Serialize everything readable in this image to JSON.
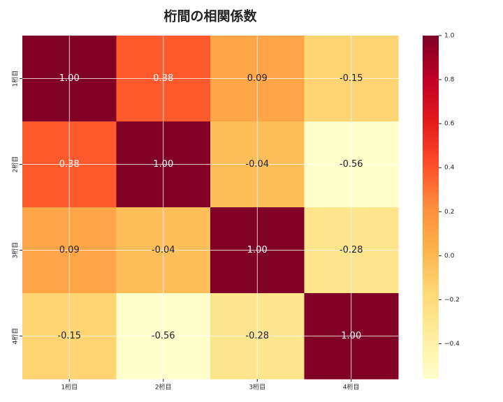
{
  "chart_data": {
    "type": "heatmap",
    "title": "桁間の相関係数",
    "x_categories": [
      "1桁目",
      "2桁目",
      "3桁目",
      "4桁目"
    ],
    "y_categories": [
      "1桁目",
      "2桁目",
      "3桁目",
      "4桁目"
    ],
    "values": [
      [
        1,
        0.38,
        0.09,
        -0.15
      ],
      [
        0.38,
        1,
        -0.04,
        -0.56
      ],
      [
        0.09,
        -0.04,
        1,
        -0.28
      ],
      [
        -0.15,
        -0.56,
        -0.28,
        1
      ]
    ],
    "value_labels": [
      [
        "1.00",
        "0.38",
        "0.09",
        "-0.15"
      ],
      [
        "0.38",
        "1.00",
        "-0.04",
        "-0.56"
      ],
      [
        "0.09",
        "-0.04",
        "1.00",
        "-0.28"
      ],
      [
        "-0.15",
        "-0.56",
        "-0.28",
        "1.00"
      ]
    ],
    "colormap": [
      "#ffffcc",
      "#ffeda0",
      "#fed976",
      "#feb24c",
      "#fd8d3c",
      "#fc4e2a",
      "#e31a1c",
      "#bd0026",
      "#800026"
    ],
    "colorbar_lim": [
      -0.56,
      1
    ],
    "colorbar_ticks": [
      {
        "value": -0.4,
        "label": "−0.4"
      },
      {
        "value": -0.2,
        "label": "−0.2"
      },
      {
        "value": 0,
        "label": "0.0"
      },
      {
        "value": 0.2,
        "label": "0.2"
      },
      {
        "value": 0.4,
        "label": "0.4"
      },
      {
        "value": 0.6,
        "label": "0.6"
      },
      {
        "value": 0.8,
        "label": "0.8"
      },
      {
        "value": 1,
        "label": "1.0"
      }
    ],
    "grid": true
  }
}
